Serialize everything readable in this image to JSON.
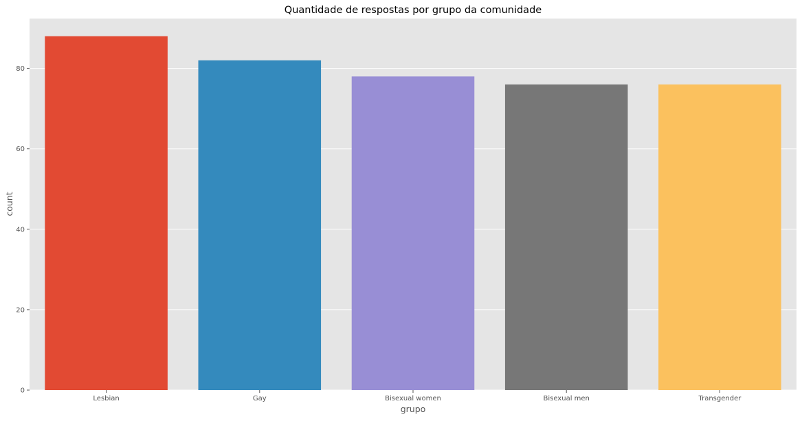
{
  "chart_data": {
    "type": "bar",
    "title": "Quantidade de respostas por grupo da comunidade",
    "xlabel": "grupo",
    "ylabel": "count",
    "categories": [
      "Lesbian",
      "Gay",
      "Bisexual women",
      "Bisexual men",
      "Transgender"
    ],
    "values": [
      88,
      82,
      78,
      76,
      76
    ],
    "colors": [
      "#E24A33",
      "#348ABD",
      "#988ED5",
      "#777777",
      "#FBC15E"
    ],
    "ylim": [
      0,
      92.4
    ],
    "yticks": [
      0,
      20,
      40,
      60,
      80
    ],
    "grid": true,
    "style": "ggplot",
    "background": "#E5E5E5"
  }
}
